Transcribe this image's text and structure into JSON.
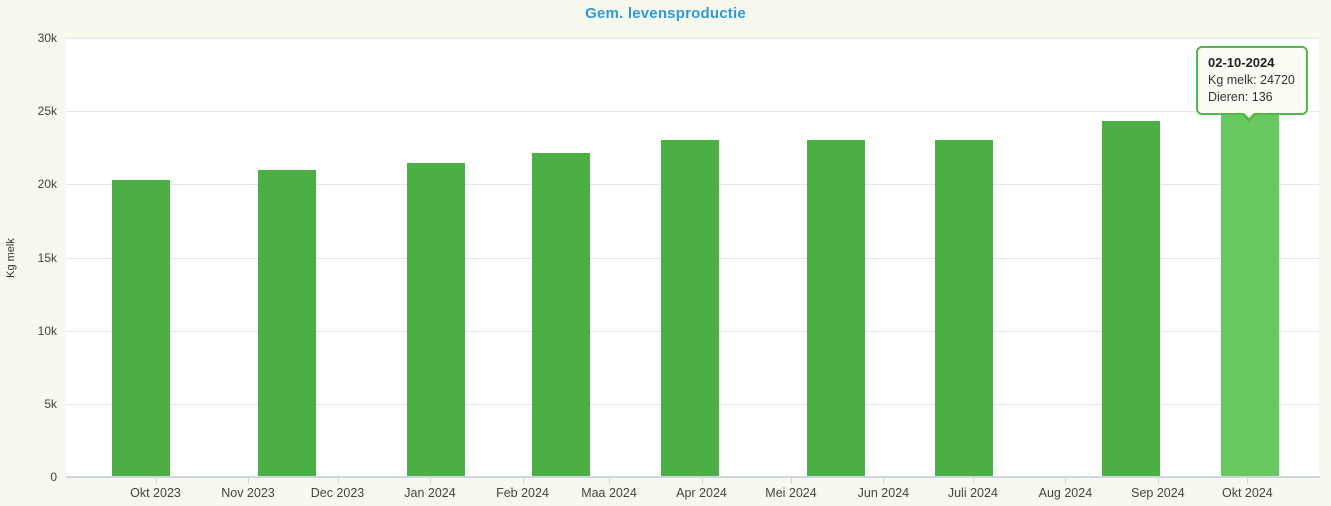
{
  "page": {
    "background_color": "#F7F8EE",
    "plot_background_color": "#FFFFFF"
  },
  "chart_data": {
    "type": "bar",
    "title": "Gem. levensproductie",
    "ylabel": "Kg melk",
    "ylim": [
      0,
      30000
    ],
    "ytick_labels": [
      "0",
      "5k",
      "10k",
      "15k",
      "20k",
      "25k",
      "30k"
    ],
    "grid": true,
    "legend": "none",
    "colors": {
      "bar": "#4CAF43",
      "bar_highlight": "#68C95E",
      "title": "#2E99D8",
      "gridline": "#E6E6E6",
      "axis_line": "#CBD6E2",
      "label_text": "#444444"
    },
    "x_axis": {
      "type": "datetime",
      "min": "2023-09-01",
      "max": "2024-10-25",
      "ticks": [
        {
          "label": "Okt 2023",
          "date": "2023-10-01"
        },
        {
          "label": "Nov 2023",
          "date": "2023-11-01"
        },
        {
          "label": "Dec 2023",
          "date": "2023-12-01"
        },
        {
          "label": "Jan 2024",
          "date": "2024-01-01"
        },
        {
          "label": "Feb 2024",
          "date": "2024-02-01"
        },
        {
          "label": "Maa 2024",
          "date": "2024-03-01"
        },
        {
          "label": "Apr 2024",
          "date": "2024-04-01"
        },
        {
          "label": "Mei 2024",
          "date": "2024-05-01"
        },
        {
          "label": "Jun 2024",
          "date": "2024-06-01"
        },
        {
          "label": "Juli 2024",
          "date": "2024-07-01"
        },
        {
          "label": "Aug 2024",
          "date": "2024-08-01"
        },
        {
          "label": "Sep 2024",
          "date": "2024-09-01"
        },
        {
          "label": "Okt 2024",
          "date": "2024-10-01"
        }
      ]
    },
    "series": [
      {
        "name": "Kg melk",
        "points": [
          {
            "date": "2023-09-26",
            "kg_melk": 20300
          },
          {
            "date": "2023-11-14",
            "kg_melk": 21000
          },
          {
            "date": "2024-01-03",
            "kg_melk": 21450
          },
          {
            "date": "2024-02-14",
            "kg_melk": 22150
          },
          {
            "date": "2024-03-28",
            "kg_melk": 23000
          },
          {
            "date": "2024-05-16",
            "kg_melk": 23000
          },
          {
            "date": "2024-06-28",
            "kg_melk": 23050
          },
          {
            "date": "2024-08-23",
            "kg_melk": 24350
          },
          {
            "date": "2024-10-02",
            "kg_melk": 24720,
            "dieren": 136,
            "highlighted": true
          }
        ]
      }
    ]
  },
  "tooltip": {
    "visible": true,
    "date": "02-10-2024",
    "kg_melk_line": "Kg melk: 24720",
    "dieren_line": "Dieren: 136"
  }
}
